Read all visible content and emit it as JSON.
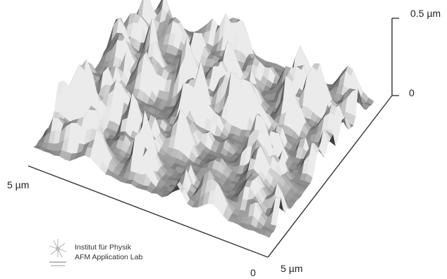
{
  "labels": {
    "z_max": "0.5 µm",
    "z_zero": "0",
    "left_axis": "5 µm",
    "origin": "0",
    "right_axis": "5 µm"
  },
  "credit": {
    "line1": "Institut für Physik",
    "line2": "AFM Application Lab"
  },
  "logo": {
    "icon": "institute-logo-icon"
  },
  "colors": {
    "surface_light": "#e6e6e6",
    "surface_dark": "#4a4a4a",
    "axis": "#333333",
    "background": "#ffffff"
  }
}
